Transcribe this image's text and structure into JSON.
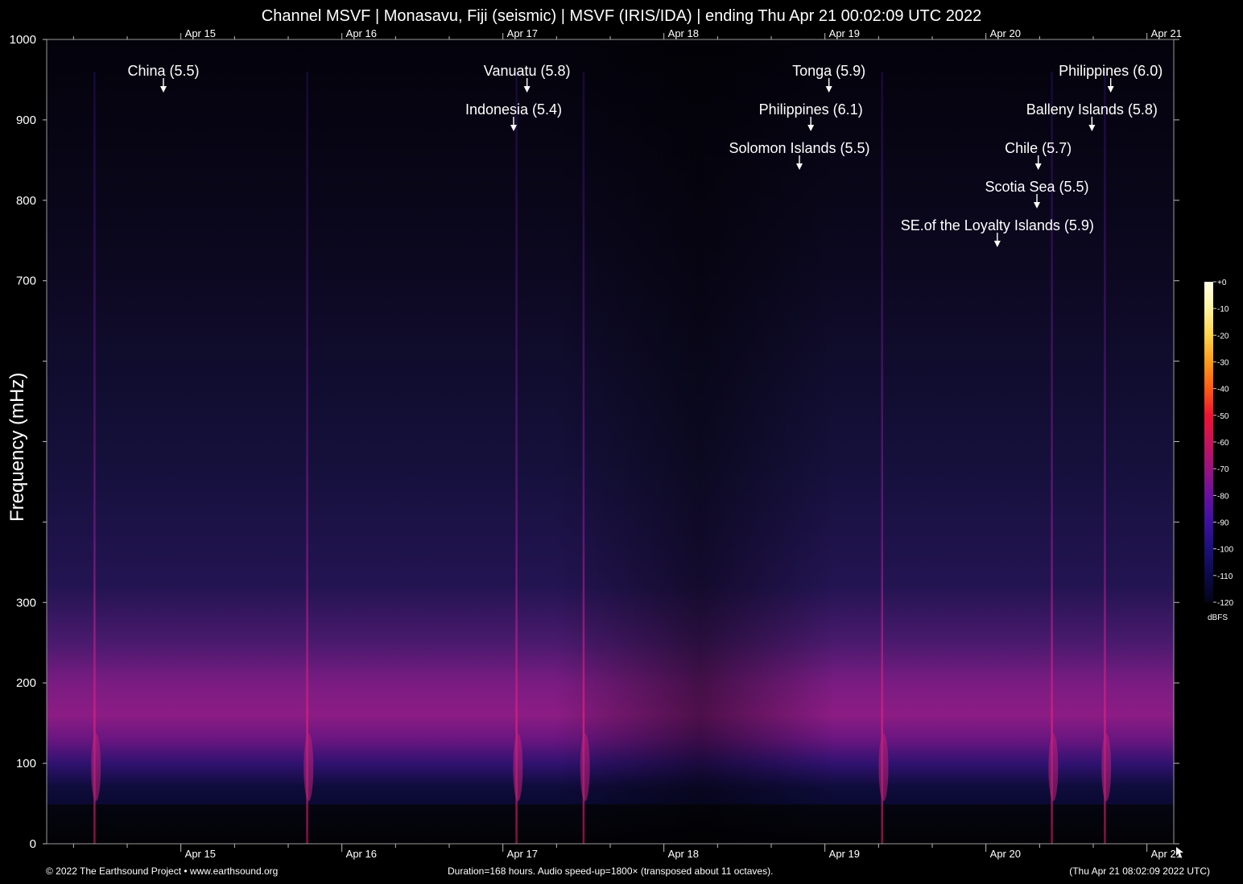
{
  "title": "Channel MSVF | Monasavu, Fiji (seismic) | MSVF (IRIS/IDA) | ending Thu Apr 21 00:02:09 UTC 2022",
  "footer": {
    "left": "© 2022 The Earthsound Project • www.earthsound.org",
    "middle": "Duration=168 hours. Audio speed-up=1800× (transposed about 11 octaves).",
    "right": "(Thu Apr 21 08:02:09 2022 UTC)"
  },
  "colorbar": {
    "unit": "dBFS",
    "ticks": [
      "+0",
      "-10",
      "-20",
      "-30",
      "-40",
      "-50",
      "-60",
      "-70",
      "-80",
      "-90",
      "-100",
      "-110",
      "-120"
    ],
    "colors": [
      "#ffffe8",
      "#fff3a0",
      "#ffd24a",
      "#ff9a1a",
      "#ff5a14",
      "#f01230",
      "#c8125a",
      "#9a1280",
      "#6a10a0",
      "#3c10a0",
      "#1c107a",
      "#0c0a48",
      "#040418"
    ]
  },
  "chart_data": {
    "type": "heatmap",
    "title": "Channel MSVF | Monasavu, Fiji (seismic) | MSVF (IRIS/IDA) | ending Thu Apr 21 00:02:09 UTC 2022",
    "ylabel": "Frequency (mHz)",
    "xlabel": "",
    "ylim": [
      0,
      1000
    ],
    "xlim_hours": [
      0,
      168
    ],
    "y_ticks": [
      {
        "value": 1000,
        "label": "1000"
      },
      {
        "value": 900,
        "label": "900"
      },
      {
        "value": 800,
        "label": "800"
      },
      {
        "value": 700,
        "label": "700"
      },
      {
        "value": 600,
        "label": ""
      },
      {
        "value": 500,
        "label": ""
      },
      {
        "value": 400,
        "label": ""
      },
      {
        "value": 300,
        "label": "300"
      },
      {
        "value": 200,
        "label": "200"
      },
      {
        "value": 100,
        "label": "100"
      },
      {
        "value": 0,
        "label": "0"
      }
    ],
    "x_ticks": [
      {
        "hour": 20,
        "label": "Apr 15"
      },
      {
        "hour": 44,
        "label": "Apr 16"
      },
      {
        "hour": 68,
        "label": "Apr 17"
      },
      {
        "hour": 92,
        "label": "Apr 18"
      },
      {
        "hour": 116,
        "label": "Apr 19"
      },
      {
        "hour": 140,
        "label": "Apr 20"
      },
      {
        "hour": 164,
        "label": "Apr 21"
      }
    ],
    "events": [
      {
        "label": "China (5.5)",
        "hour": 17.4,
        "row": 0
      },
      {
        "label": "Vanuatu (5.8)",
        "hour": 71.6,
        "row": 0
      },
      {
        "label": "Indonesia (5.4)",
        "hour": 69.6,
        "row": 1
      },
      {
        "label": "Tonga (5.9)",
        "hour": 116.6,
        "row": 0
      },
      {
        "label": "Philippines (6.1)",
        "hour": 113.9,
        "row": 1
      },
      {
        "label": "Solomon Islands (5.5)",
        "hour": 112.2,
        "row": 2
      },
      {
        "label": "Philippines (6.0)",
        "hour": 158.6,
        "row": 0
      },
      {
        "label": "Balleny Islands (5.8)",
        "hour": 155.8,
        "row": 1
      },
      {
        "label": "Chile (5.7)",
        "hour": 147.8,
        "row": 2
      },
      {
        "label": "Scotia Sea (5.5)",
        "hour": 147.6,
        "row": 3
      },
      {
        "label": "SE.of the Loyalty Islands (5.9)",
        "hour": 141.7,
        "row": 4
      }
    ],
    "energy_streaks_hours": [
      7.1,
      38.8,
      70.0,
      80.0,
      124.5,
      149.8,
      157.7
    ],
    "microseism_band_mHz": [
      130,
      260
    ]
  }
}
